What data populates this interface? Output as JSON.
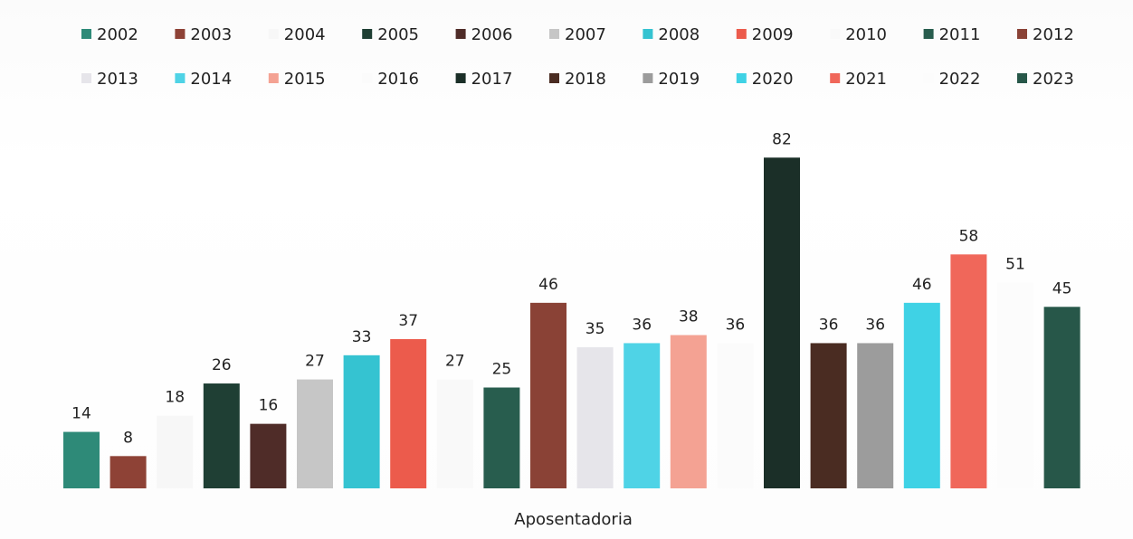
{
  "chart_data": {
    "type": "bar",
    "categories": [
      "Aposentadoria"
    ],
    "series": [
      {
        "name": "2002",
        "values": [
          14
        ],
        "color": "#2e8a78"
      },
      {
        "name": "2003",
        "values": [
          8
        ],
        "color": "#8e4236"
      },
      {
        "name": "2004",
        "values": [
          18
        ],
        "color": "#f7f7f7"
      },
      {
        "name": "2005",
        "values": [
          26
        ],
        "color": "#1f3f34"
      },
      {
        "name": "2006",
        "values": [
          16
        ],
        "color": "#4f2c28"
      },
      {
        "name": "2007",
        "values": [
          27
        ],
        "color": "#c6c6c6"
      },
      {
        "name": "2008",
        "values": [
          33
        ],
        "color": "#35c3d1"
      },
      {
        "name": "2009",
        "values": [
          37
        ],
        "color": "#ec5b4c"
      },
      {
        "name": "2010",
        "values": [
          27
        ],
        "color": "#f9f9f9"
      },
      {
        "name": "2011",
        "values": [
          25
        ],
        "color": "#285d4e"
      },
      {
        "name": "2012",
        "values": [
          46
        ],
        "color": "#8a4236"
      },
      {
        "name": "2013",
        "values": [
          35
        ],
        "color": "#e6e5ea"
      },
      {
        "name": "2014",
        "values": [
          36
        ],
        "color": "#4fd3e6"
      },
      {
        "name": "2015",
        "values": [
          38
        ],
        "color": "#f4a293"
      },
      {
        "name": "2016",
        "values": [
          36
        ],
        "color": "#fbfbfb"
      },
      {
        "name": "2017",
        "values": [
          82
        ],
        "color": "#1b2f28"
      },
      {
        "name": "2018",
        "values": [
          36
        ],
        "color": "#4a2c22"
      },
      {
        "name": "2019",
        "values": [
          36
        ],
        "color": "#9c9c9c"
      },
      {
        "name": "2020",
        "values": [
          46
        ],
        "color": "#3fd2e5"
      },
      {
        "name": "2021",
        "values": [
          58
        ],
        "color": "#f0675a"
      },
      {
        "name": "2022",
        "values": [
          51
        ],
        "color": "#fcfcfc"
      },
      {
        "name": "2023",
        "values": [
          45
        ],
        "color": "#275749"
      }
    ],
    "title": "",
    "xlabel": "",
    "ylabel": "",
    "ylim": [
      0,
      82
    ],
    "grid": false,
    "legend_position": "top"
  }
}
